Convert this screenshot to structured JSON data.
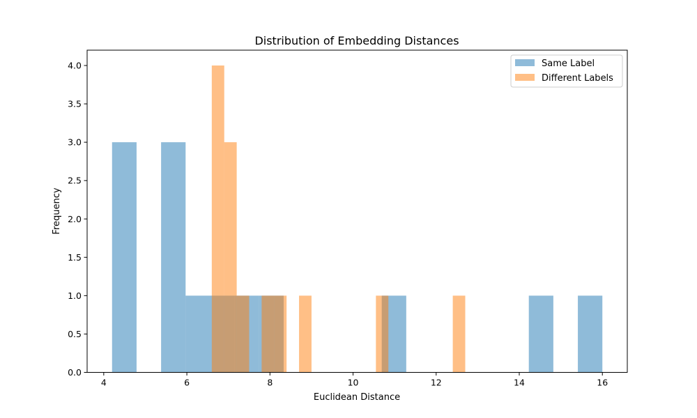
{
  "chart_data": {
    "type": "bar",
    "title": "Distribution of Embedding Distances",
    "xlabel": "Euclidean Distance",
    "ylabel": "Frequency",
    "xlim": [
      3.6,
      16.6
    ],
    "ylim": [
      0,
      4.2
    ],
    "x_ticks": [
      4,
      6,
      8,
      10,
      12,
      14,
      16
    ],
    "x_tick_labels": [
      "4",
      "6",
      "8",
      "10",
      "12",
      "14",
      "16"
    ],
    "y_ticks": [
      0,
      0.5,
      1.0,
      1.5,
      2.0,
      2.5,
      3.0,
      3.5,
      4.0
    ],
    "y_tick_labels": [
      "0.0",
      "0.5",
      "1.0",
      "1.5",
      "2.0",
      "2.5",
      "3.0",
      "3.5",
      "4.0"
    ],
    "grid": false,
    "legend_position": "top-right",
    "series": [
      {
        "name": "Same Label",
        "color": "#1f77b4",
        "opacity": 0.5,
        "bins": [
          {
            "x0": 4.2,
            "x1": 4.79,
            "count": 3
          },
          {
            "x0": 5.38,
            "x1": 5.97,
            "count": 3
          },
          {
            "x0": 5.97,
            "x1": 6.56,
            "count": 1
          },
          {
            "x0": 6.56,
            "x1": 7.15,
            "count": 1
          },
          {
            "x0": 7.15,
            "x1": 7.74,
            "count": 1
          },
          {
            "x0": 7.74,
            "x1": 8.33,
            "count": 1
          },
          {
            "x0": 10.69,
            "x1": 11.28,
            "count": 1
          },
          {
            "x0": 14.23,
            "x1": 14.82,
            "count": 1
          },
          {
            "x0": 15.41,
            "x1": 16.0,
            "count": 1
          }
        ]
      },
      {
        "name": "Different Labels",
        "color": "#ff7f0e",
        "opacity": 0.5,
        "bins": [
          {
            "x0": 6.6,
            "x1": 6.9,
            "count": 4
          },
          {
            "x0": 6.9,
            "x1": 7.2,
            "count": 3
          },
          {
            "x0": 7.2,
            "x1": 7.5,
            "count": 1
          },
          {
            "x0": 7.8,
            "x1": 8.1,
            "count": 1
          },
          {
            "x0": 8.1,
            "x1": 8.4,
            "count": 1
          },
          {
            "x0": 8.7,
            "x1": 9.0,
            "count": 1
          },
          {
            "x0": 10.55,
            "x1": 10.85,
            "count": 1
          },
          {
            "x0": 12.4,
            "x1": 12.7,
            "count": 1
          }
        ]
      }
    ]
  }
}
